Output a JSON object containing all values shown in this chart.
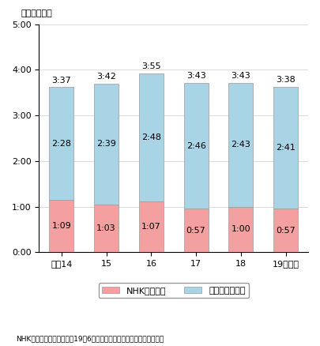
{
  "categories": [
    "平成14",
    "15",
    "16",
    "17",
    "18",
    "19（年）"
  ],
  "nhk_minutes": [
    69,
    63,
    67,
    57,
    60,
    57
  ],
  "civil_minutes": [
    148,
    159,
    168,
    166,
    163,
    161
  ],
  "nhk_labels": [
    "1:09",
    "1:03",
    "1:07",
    "0:57",
    "1:00",
    "0:57"
  ],
  "civil_labels": [
    "2:28",
    "2:39",
    "2:48",
    "2:46",
    "2:43",
    "2:41"
  ],
  "total_labels": [
    "3:37",
    "3:42",
    "3:55",
    "3:43",
    "3:43",
    "3:38"
  ],
  "nhk_color": "#F4A0A0",
  "civil_color": "#A8D4E6",
  "bar_width": 0.55,
  "ylim_max": 300,
  "yticks": [
    0,
    60,
    120,
    180,
    240,
    300
  ],
  "ytick_labels": [
    "0:00",
    "1:00",
    "2:00",
    "3:00",
    "4:00",
    "5:00"
  ],
  "ylabel": "（時間：分）",
  "legend_nhk": "NHK視聴時間",
  "legend_civil": "民放他視聴時間",
  "footnote": "NHK放送文化研究所「平成19年6月　全国個人視聴率調査」により作成"
}
